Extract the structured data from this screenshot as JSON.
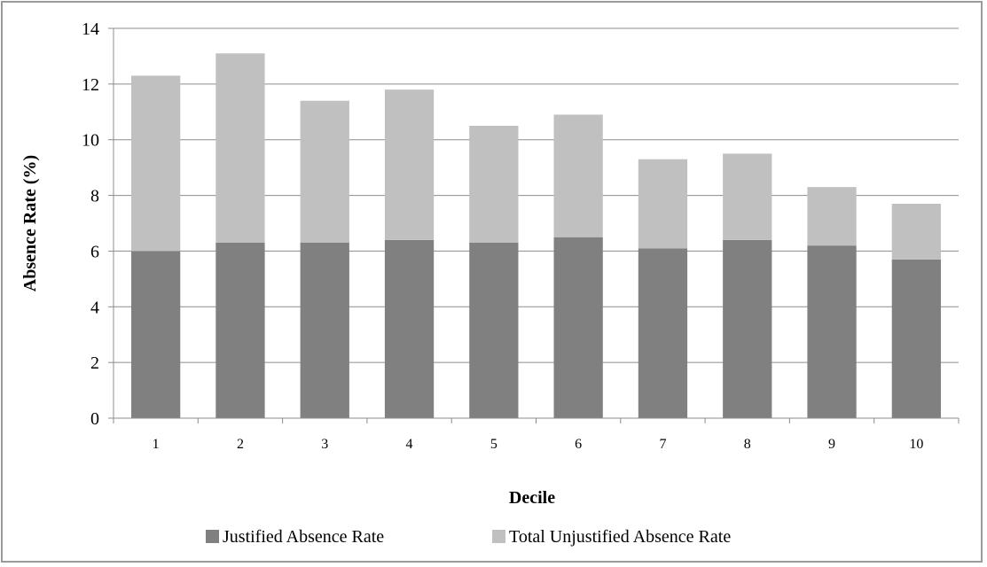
{
  "chart_data": {
    "type": "bar",
    "stacked": true,
    "xlabel": "Decile",
    "ylabel": "Absence Rate (%)",
    "ylim": [
      0,
      14
    ],
    "yticks": [
      0,
      2,
      4,
      6,
      8,
      10,
      12,
      14
    ],
    "grid": true,
    "legend_position": "bottom",
    "categories": [
      "1",
      "2",
      "3",
      "4",
      "5",
      "6",
      "7",
      "8",
      "9",
      "10"
    ],
    "series": [
      {
        "name": "Justified Absence Rate",
        "color": "#808080",
        "values": [
          6.0,
          6.3,
          6.3,
          6.4,
          6.3,
          6.5,
          6.1,
          6.4,
          6.2,
          5.7
        ]
      },
      {
        "name": "Total Unjustified Absence Rate",
        "color": "#c0c0c0",
        "values": [
          6.3,
          6.8,
          5.1,
          5.4,
          4.2,
          4.4,
          3.2,
          3.1,
          2.1,
          2.0
        ]
      }
    ]
  }
}
